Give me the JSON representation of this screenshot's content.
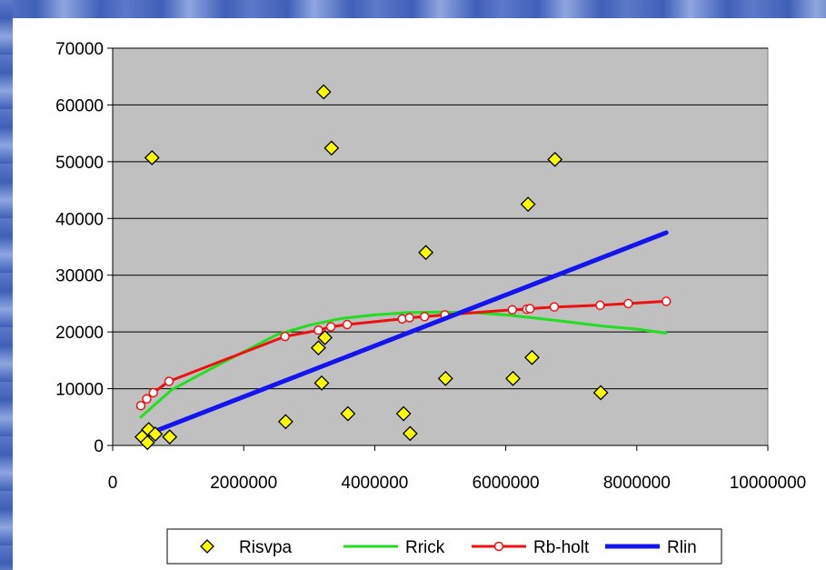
{
  "chart_data": {
    "type": "scatter",
    "xlim": [
      0,
      10000000
    ],
    "ylim": [
      0,
      70000
    ],
    "x_ticks": [
      "0",
      "2000000",
      "4000000",
      "6000000",
      "8000000",
      "10000000"
    ],
    "y_ticks": [
      "0",
      "10000",
      "20000",
      "30000",
      "40000",
      "50000",
      "60000",
      "70000"
    ],
    "grid": "horizontal",
    "legend_position": "bottom",
    "plot_background": "#c0c0c0",
    "series": [
      {
        "name": "Risvpa",
        "kind": "markers",
        "marker": "diamond",
        "color": "#ffff00",
        "points": [
          [
            450000,
            1500
          ],
          [
            530000,
            500
          ],
          [
            550000,
            2800
          ],
          [
            650000,
            2000
          ],
          [
            870000,
            1500
          ],
          [
            600000,
            50700
          ],
          [
            2640000,
            4200
          ],
          [
            3140000,
            17200
          ],
          [
            3190000,
            11000
          ],
          [
            3240000,
            19000
          ],
          [
            3220000,
            62300
          ],
          [
            3340000,
            52400
          ],
          [
            3590000,
            5600
          ],
          [
            4440000,
            5600
          ],
          [
            4540000,
            2100
          ],
          [
            4780000,
            34000
          ],
          [
            5080000,
            11800
          ],
          [
            6110000,
            11800
          ],
          [
            6340000,
            42500
          ],
          [
            6400000,
            15500
          ],
          [
            6750000,
            50400
          ],
          [
            7450000,
            9300
          ]
        ]
      },
      {
        "name": "Rrick",
        "kind": "line",
        "color": "#22dd22",
        "points": [
          [
            430000,
            5000
          ],
          [
            900000,
            9800
          ],
          [
            1500000,
            13500
          ],
          [
            2000000,
            16500
          ],
          [
            2500000,
            19500
          ],
          [
            3000000,
            21200
          ],
          [
            3500000,
            22400
          ],
          [
            4000000,
            23000
          ],
          [
            4500000,
            23400
          ],
          [
            5000000,
            23500
          ],
          [
            5500000,
            23400
          ],
          [
            6000000,
            23000
          ],
          [
            6500000,
            22400
          ],
          [
            7000000,
            21700
          ],
          [
            7500000,
            21000
          ],
          [
            8000000,
            20500
          ],
          [
            8450000,
            19800
          ]
        ]
      },
      {
        "name": "Rb-holt",
        "kind": "line-markers",
        "color": "#ee1111",
        "marker_fill": "#ffffff",
        "points": [
          [
            430000,
            7000
          ],
          [
            520000,
            8200
          ],
          [
            620000,
            9300
          ],
          [
            860000,
            11300
          ],
          [
            2630000,
            19200
          ],
          [
            3140000,
            20300
          ],
          [
            3330000,
            20900
          ],
          [
            3580000,
            21300
          ],
          [
            4420000,
            22300
          ],
          [
            4530000,
            22500
          ],
          [
            4760000,
            22700
          ],
          [
            5070000,
            23000
          ],
          [
            6100000,
            23900
          ],
          [
            6320000,
            24000
          ],
          [
            6370000,
            24100
          ],
          [
            6740000,
            24400
          ],
          [
            7440000,
            24700
          ],
          [
            7870000,
            25000
          ],
          [
            8450000,
            25400
          ]
        ]
      },
      {
        "name": "Rlin",
        "kind": "line",
        "color": "#1414ee",
        "points": [
          [
            600000,
            2300
          ],
          [
            8450000,
            37500
          ]
        ]
      }
    ]
  }
}
